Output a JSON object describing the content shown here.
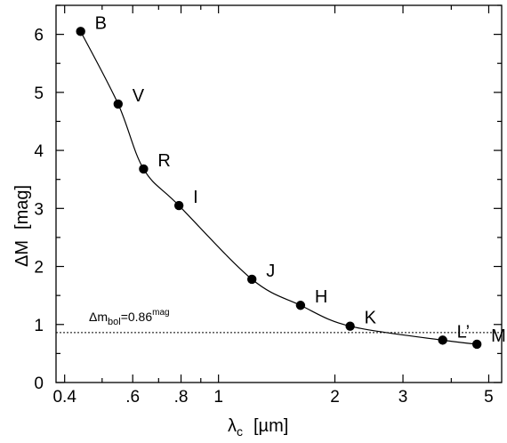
{
  "chart_data": {
    "type": "scatter",
    "xscale": "log",
    "xlim": [
      0.38,
      5.4
    ],
    "ylim": [
      0,
      6.5
    ],
    "xlabel": {
      "main": "λ",
      "sub": "c",
      "unit": "[µm]"
    },
    "ylabel": {
      "main": "ΔM",
      "unit": "[mag]"
    },
    "x_ticks": [
      {
        "value": 0.4,
        "label": "0.4"
      },
      {
        "value": 0.6,
        "label": ".6"
      },
      {
        "value": 0.8,
        "label": ".8"
      },
      {
        "value": 1,
        "label": "1"
      },
      {
        "value": 2,
        "label": "2"
      },
      {
        "value": 3,
        "label": "3"
      },
      {
        "value": 5,
        "label": "5"
      }
    ],
    "x_minor_ticks": [
      0.5,
      0.7,
      0.9,
      4
    ],
    "y_ticks": [
      {
        "value": 0,
        "label": "0"
      },
      {
        "value": 1,
        "label": "1"
      },
      {
        "value": 2,
        "label": "2"
      },
      {
        "value": 3,
        "label": "3"
      },
      {
        "value": 4,
        "label": "4"
      },
      {
        "value": 5,
        "label": "5"
      },
      {
        "value": 6,
        "label": "6"
      }
    ],
    "y_minor_ticks": [
      0.5,
      1.5,
      2.5,
      3.5,
      4.5,
      5.5,
      6.5
    ],
    "points": [
      {
        "band": "B",
        "x": 0.44,
        "y": 6.05
      },
      {
        "band": "V",
        "x": 0.55,
        "y": 4.8
      },
      {
        "band": "R",
        "x": 0.64,
        "y": 3.68
      },
      {
        "band": "I",
        "x": 0.79,
        "y": 3.05
      },
      {
        "band": "J",
        "x": 1.22,
        "y": 1.78
      },
      {
        "band": "H",
        "x": 1.63,
        "y": 1.33
      },
      {
        "band": "K",
        "x": 2.19,
        "y": 0.97
      },
      {
        "band": "L’",
        "x": 3.8,
        "y": 0.73
      },
      {
        "band": "M",
        "x": 4.66,
        "y": 0.66
      }
    ],
    "reference_line": {
      "y": 0.86,
      "label": "Δm",
      "label_sub": "bol",
      "label_mid": "=0.86",
      "label_sup": "mag"
    },
    "grid": false,
    "legend": "none"
  }
}
